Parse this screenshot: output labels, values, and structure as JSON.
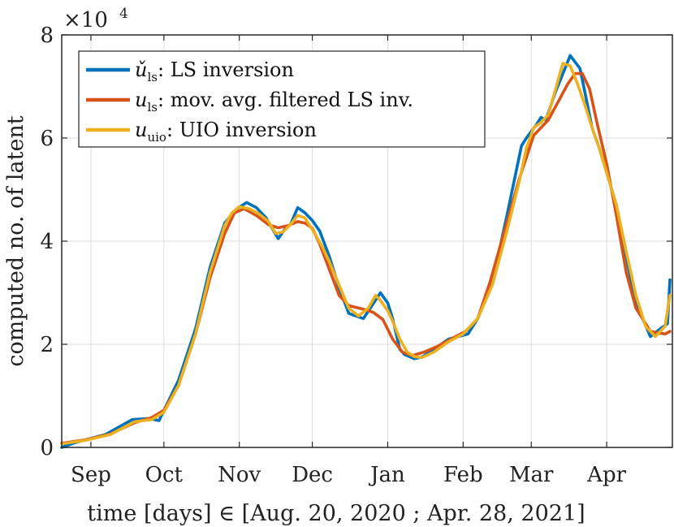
{
  "chart_data": {
    "type": "line",
    "xlabel": "time [days] ∈ [Aug. 20, 2020 ; Apr. 28, 2021]",
    "ylabel": "computed no. of latent",
    "y_multiplier": "×10",
    "y_multiplier_exp": "4",
    "xlim": [
      0,
      251
    ],
    "ylim": [
      0,
      80000
    ],
    "xticks": [
      {
        "label": "Sep",
        "day": 12
      },
      {
        "label": "Oct",
        "day": 42
      },
      {
        "label": "Nov",
        "day": 73
      },
      {
        "label": "Dec",
        "day": 103
      },
      {
        "label": "Jan",
        "day": 134
      },
      {
        "label": "Feb",
        "day": 165
      },
      {
        "label": "Mar",
        "day": 193
      },
      {
        "label": "Apr",
        "day": 224
      }
    ],
    "yticks": [
      {
        "label": "0",
        "value": 0
      },
      {
        "label": "2",
        "value": 20000
      },
      {
        "label": "4",
        "value": 40000
      },
      {
        "label": "6",
        "value": 60000
      },
      {
        "label": "8",
        "value": 80000
      }
    ],
    "legend_position": "top-left",
    "series": [
      {
        "name": "LS inversion",
        "symbol": "ǔ",
        "subscript": "ls",
        "color": "#0072BD",
        "x": [
          0,
          6,
          18,
          29,
          36,
          40,
          48,
          55,
          61,
          67,
          70,
          72,
          76,
          80,
          84,
          89,
          92,
          94,
          97,
          100,
          103,
          106,
          110,
          114,
          118,
          124,
          131,
          134,
          136,
          139,
          141,
          145,
          148,
          153,
          159,
          163,
          167,
          171,
          177,
          183,
          189,
          191,
          195,
          197,
          199,
          203,
          209,
          213,
          215,
          218,
          221,
          228,
          232,
          236,
          242,
          246,
          249,
          250
        ],
        "values": [
          0,
          1000,
          2500,
          5400,
          5600,
          5200,
          13000,
          23000,
          35000,
          43500,
          45200,
          46300,
          47500,
          46500,
          44500,
          40500,
          42500,
          43200,
          46500,
          45500,
          44000,
          42000,
          37000,
          31000,
          26000,
          25000,
          30000,
          28000,
          25000,
          19000,
          18000,
          17200,
          17500,
          19000,
          21000,
          21500,
          22000,
          25000,
          32000,
          45000,
          58500,
          60000,
          62500,
          64000,
          63500,
          69000,
          76000,
          73500,
          69000,
          62000,
          58000,
          47000,
          37000,
          28000,
          21500,
          23000,
          24000,
          32500
        ]
      },
      {
        "name": "mov. avg. filtered LS inv.",
        "symbol": "u",
        "subscript": "ls",
        "color": "#D95319",
        "x": [
          0,
          10,
          20,
          30,
          37,
          42,
          48,
          55,
          61,
          67,
          71,
          75,
          80,
          85,
          89,
          93,
          97,
          100,
          103,
          106,
          110,
          114,
          118,
          124,
          128,
          132,
          136,
          140,
          144,
          149,
          154,
          160,
          166,
          171,
          176,
          182,
          188,
          194,
          200,
          204,
          208,
          211,
          214,
          217,
          220,
          224,
          228,
          232,
          236,
          242,
          248,
          250
        ],
        "values": [
          800,
          1500,
          2600,
          4800,
          5800,
          7200,
          12000,
          22000,
          33000,
          41500,
          45500,
          46300,
          45000,
          43200,
          42600,
          43000,
          43800,
          43500,
          42500,
          39500,
          34500,
          29500,
          27500,
          26800,
          26200,
          24800,
          21000,
          18500,
          17800,
          18500,
          19500,
          21000,
          22500,
          25000,
          32000,
          42000,
          52000,
          60500,
          63500,
          67000,
          70500,
          72500,
          72500,
          69500,
          63000,
          55000,
          45000,
          34000,
          27000,
          22500,
          22000,
          22500
        ]
      },
      {
        "name": "UIO inversion",
        "symbol": "u",
        "subscript": "uio",
        "color": "#EDB120",
        "x": [
          0,
          10,
          20,
          30,
          37,
          42,
          48,
          55,
          61,
          67,
          70,
          73,
          77,
          81,
          85,
          88,
          91,
          94,
          97,
          100,
          104,
          107,
          110,
          114,
          118,
          122,
          126,
          129,
          131,
          134,
          136,
          139,
          142,
          145,
          148,
          153,
          159,
          165,
          171,
          177,
          183,
          188,
          191,
          194,
          197,
          200,
          203,
          206,
          209,
          212,
          215,
          218,
          221,
          228,
          232,
          236,
          240,
          244,
          248,
          250
        ],
        "values": [
          700,
          1400,
          2500,
          5000,
          5400,
          6800,
          12000,
          22000,
          34000,
          43000,
          45500,
          46700,
          46300,
          45300,
          43800,
          41500,
          41800,
          43200,
          45000,
          44500,
          41500,
          39000,
          36000,
          31500,
          27000,
          25500,
          27000,
          29500,
          28500,
          26500,
          24500,
          21000,
          18500,
          17600,
          17400,
          18500,
          20500,
          22000,
          25000,
          31500,
          42000,
          51500,
          58000,
          62000,
          63000,
          64500,
          69500,
          74500,
          74000,
          70500,
          66500,
          62000,
          58000,
          47000,
          38000,
          29500,
          23500,
          21500,
          23500,
          29500
        ]
      }
    ]
  }
}
